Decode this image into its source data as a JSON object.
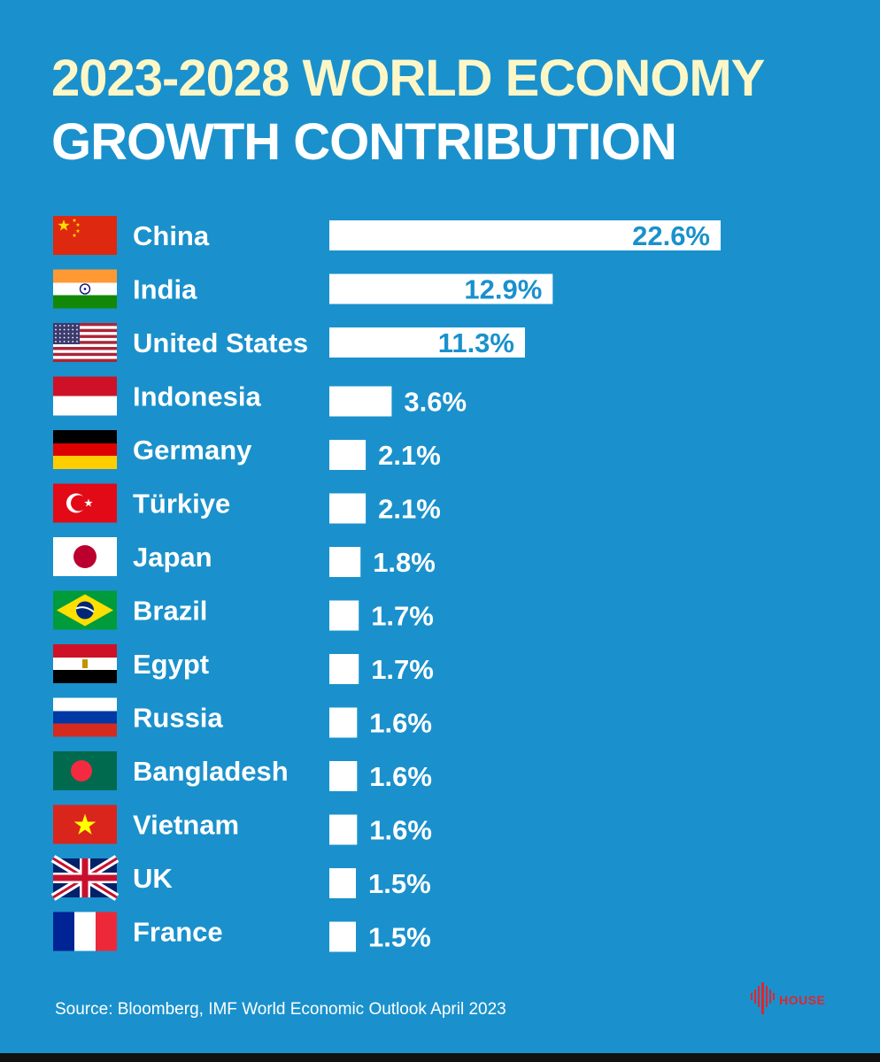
{
  "title": {
    "line1": "2023-2028 WORLD ECONOMY",
    "line2": "GROWTH CONTRIBUTION"
  },
  "chart_data": {
    "type": "bar",
    "orientation": "horizontal",
    "title": "2023-2028 WORLD ECONOMY GROWTH CONTRIBUTION",
    "categories": [
      "China",
      "India",
      "United States",
      "Indonesia",
      "Germany",
      "Türkiye",
      "Japan",
      "Brazil",
      "Egypt",
      "Russia",
      "Bangladesh",
      "Vietnam",
      "UK",
      "France"
    ],
    "values": [
      22.6,
      12.9,
      11.3,
      3.6,
      2.1,
      2.1,
      1.8,
      1.7,
      1.7,
      1.6,
      1.6,
      1.6,
      1.5,
      1.5
    ],
    "value_labels": [
      "22.6%",
      "12.9%",
      "11.3%",
      "3.6%",
      "2.1%",
      "2.1%",
      "1.8%",
      "1.7%",
      "1.7%",
      "1.6%",
      "1.6%",
      "1.6%",
      "1.5%",
      "1.5%"
    ],
    "unit": "%",
    "bar_color": "#ffffff",
    "inside_label_color": "#1a91cc",
    "outside_label_color": "#ffffff",
    "flags": [
      "china-flag",
      "india-flag",
      "united-states-flag",
      "indonesia-flag",
      "germany-flag",
      "turkiye-flag",
      "japan-flag",
      "brazil-flag",
      "egypt-flag",
      "russia-flag",
      "bangladesh-flag",
      "vietnam-flag",
      "uk-flag",
      "france-flag"
    ]
  },
  "source": "Source: Bloomberg, IMF World Economic Outlook April 2023",
  "brand": {
    "name": "HOUSE",
    "icon": "sound-wave-logo-icon",
    "color": "#e0252f"
  },
  "colors": {
    "background": "#1a91cc",
    "title_line1": "#fdf7c7",
    "title_line2": "#ffffff"
  }
}
